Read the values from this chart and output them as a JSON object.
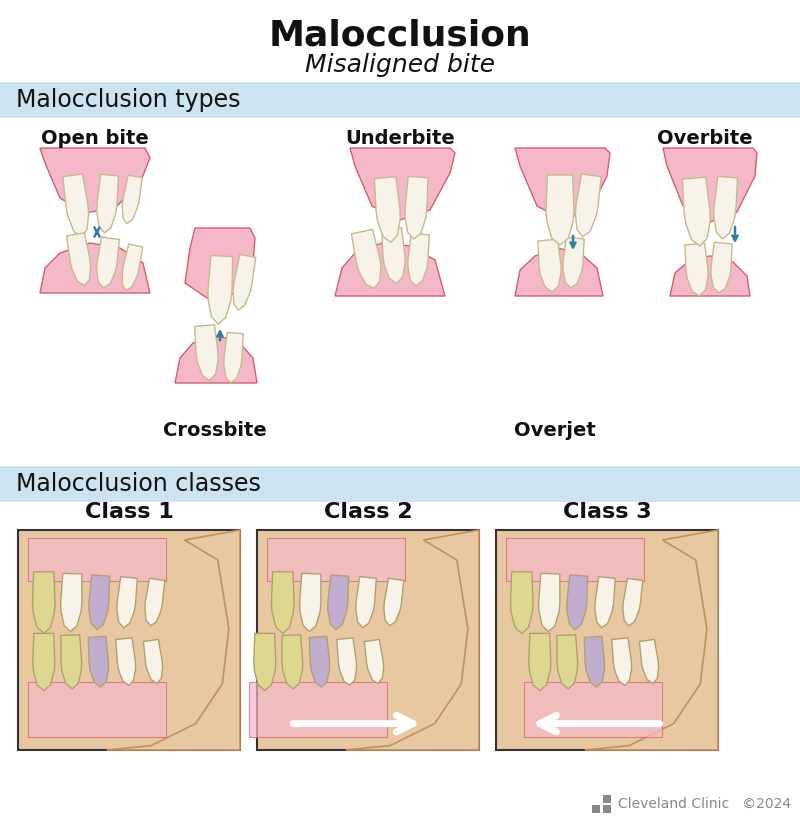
{
  "title": "Malocclusion",
  "subtitle": "Misaligned bite",
  "section1_title": "Malocclusion types",
  "section2_title": "Malocclusion classes",
  "classes": [
    "Class 1",
    "Class 2",
    "Class 3"
  ],
  "bg_color": "#ffffff",
  "section_bg": "#cce4f0",
  "section_text_color": "#111111",
  "title_color": "#111111",
  "arrow_color": "#2a7fa0",
  "gum_color": "#f5b8c8",
  "gum_edge_color": "#d06070",
  "tooth_color": "#f8f3e8",
  "tooth_edge_color": "#c8b890",
  "class_box_border": "#555555",
  "class_box_bg": "#f0d8b8",
  "yellow_tooth": "#ddd890",
  "purple_tooth": "#c0aed0",
  "white_arrow": "#ffffff",
  "footer_color": "#888888",
  "footer_text": "Cleveland Clinic   ©2024",
  "skin_color": "#e8c8a0"
}
